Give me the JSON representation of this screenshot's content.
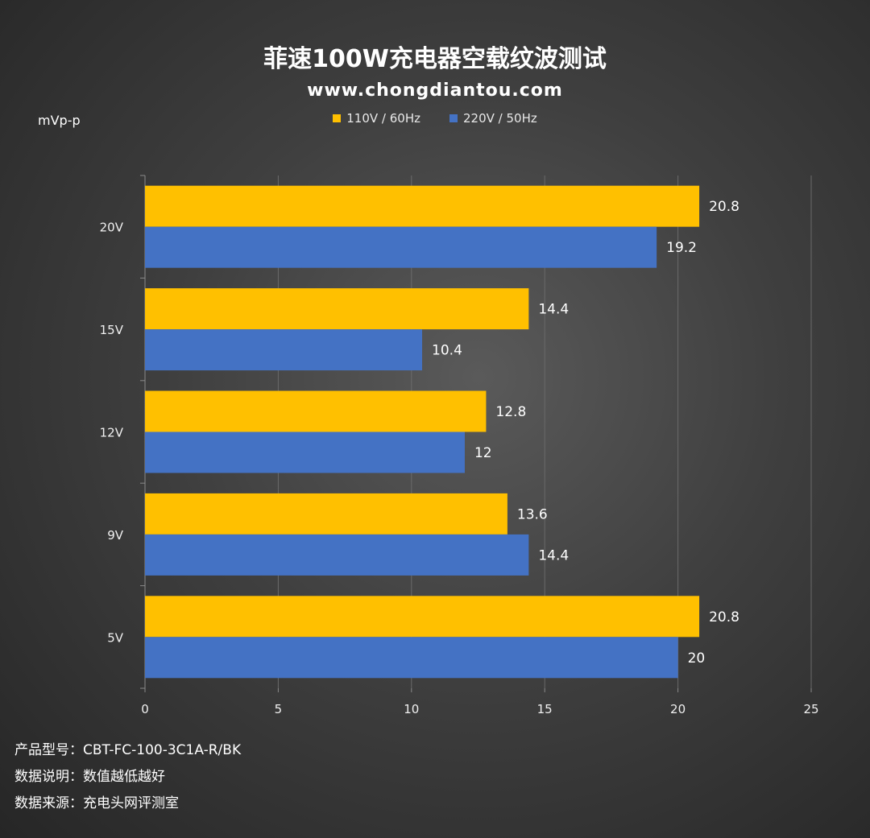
{
  "chart_data": {
    "type": "bar",
    "orientation": "horizontal",
    "title": "菲速100W充电器空载纹波测试",
    "subtitle": "www.chongdiantou.com",
    "ylabel": "mVp-p",
    "categories": [
      "20V",
      "15V",
      "12V",
      "9V",
      "5V"
    ],
    "series": [
      {
        "name": "110V / 60Hz",
        "color": "#FFC000",
        "values": [
          20.8,
          14.4,
          12.8,
          13.6,
          20.8
        ]
      },
      {
        "name": "220V / 50Hz",
        "color": "#4472C4",
        "values": [
          19.2,
          10.4,
          12,
          14.4,
          20
        ]
      }
    ],
    "xlim": [
      0,
      25
    ],
    "xticks": [
      "0",
      "5",
      "10",
      "15",
      "20",
      "25"
    ],
    "value_labels": [
      [
        "20.8",
        "14.4",
        "12.8",
        "13.6",
        "20.8"
      ],
      [
        "19.2",
        "10.4",
        "12",
        "14.4",
        "20"
      ]
    ],
    "grid": true,
    "legend_position": "top-center"
  },
  "footer": {
    "model": "产品型号：CBT-FC-100-3C1A-R/BK",
    "note": "数据说明：数值越低越好",
    "source": "数据来源：充电头网评测室"
  }
}
